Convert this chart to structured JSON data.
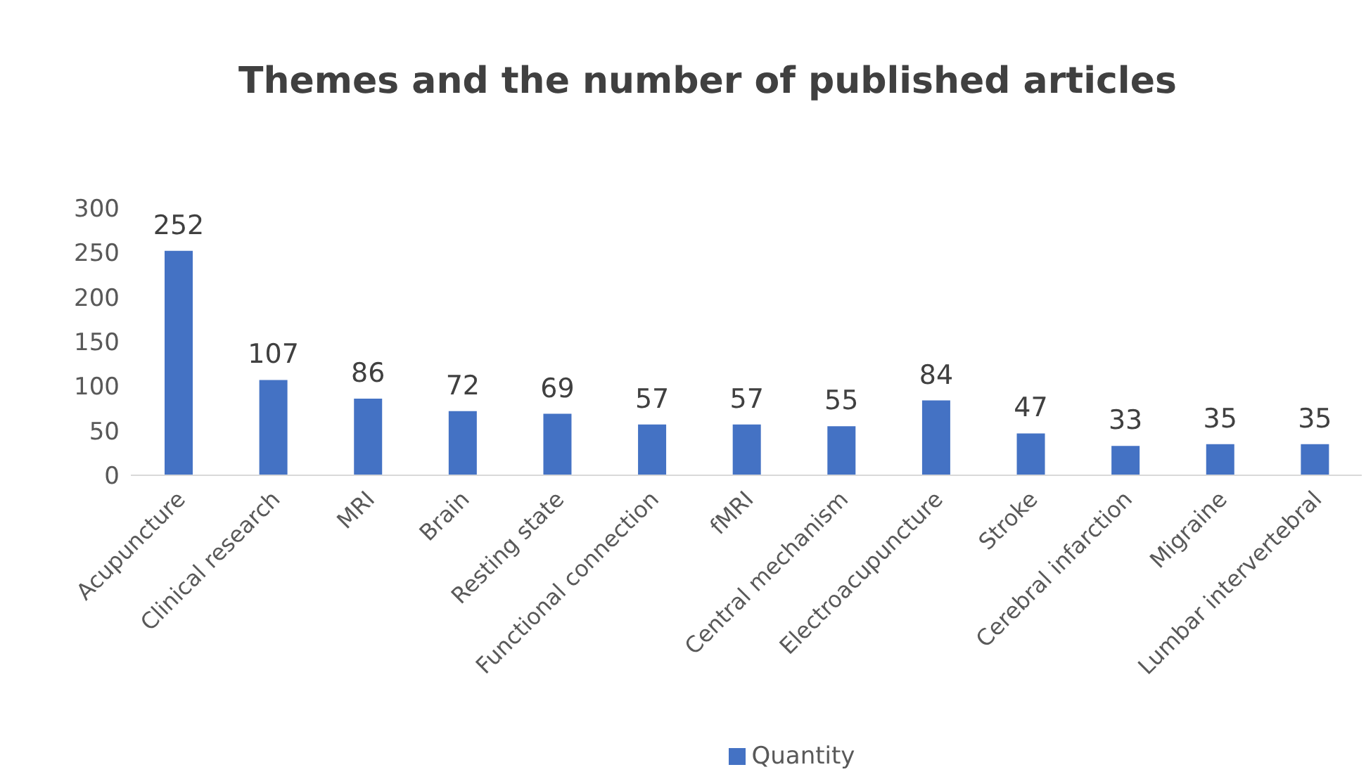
{
  "chart_data": {
    "type": "bar",
    "title": "Themes and the number of published articles",
    "categories": [
      "Acupuncture",
      "Clinical research",
      "MRI",
      "Brain",
      "Resting state",
      "Functional connection",
      "fMRI",
      "Central mechanism",
      "Electroacupuncture",
      "Stroke",
      "Cerebral infarction",
      "Migraine",
      "Lumbar intervertebral"
    ],
    "series": [
      {
        "name": "Quantity",
        "color": "#4472c4",
        "values": [
          252,
          107,
          86,
          72,
          69,
          57,
          57,
          55,
          84,
          47,
          33,
          35,
          35
        ]
      }
    ],
    "ylim": [
      0,
      300
    ],
    "yticks": [
      0,
      50,
      100,
      150,
      200,
      250,
      300
    ],
    "data_labels": true,
    "legend": "bottom"
  }
}
